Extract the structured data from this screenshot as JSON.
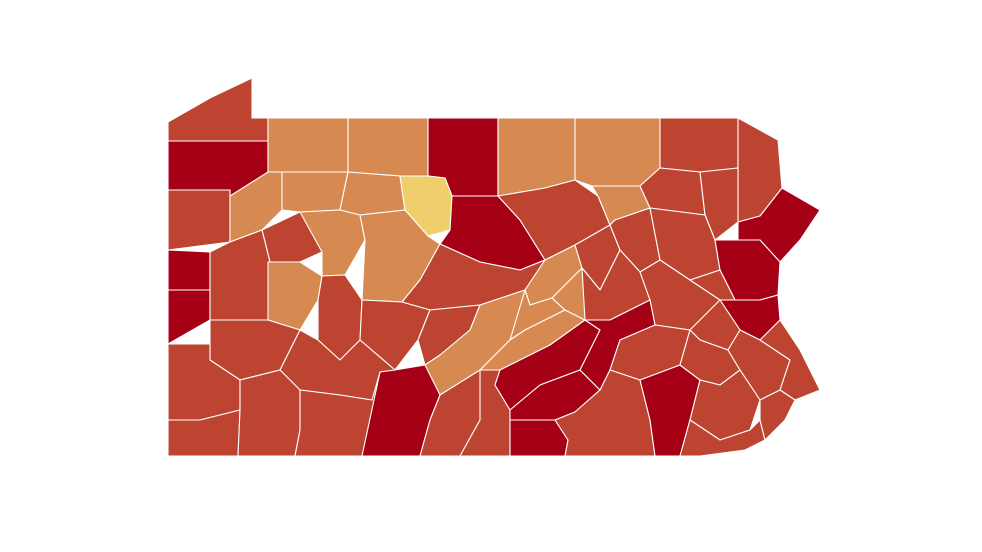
{
  "map": {
    "region": "Pennsylvania",
    "colors": {
      "very_high": "#a50016",
      "high": "#bd4431",
      "medium": "#d68a52",
      "low": "#f0ce6b",
      "background": "#ffffff",
      "border": "#ffffff"
    },
    "counties": [
      {
        "id": "erie",
        "level": "high"
      },
      {
        "id": "crawford",
        "level": "very_high"
      },
      {
        "id": "mercer",
        "level": "high"
      },
      {
        "id": "lawrence",
        "level": "very_high"
      },
      {
        "id": "beaver",
        "level": "very_high"
      },
      {
        "id": "venango",
        "level": "medium"
      },
      {
        "id": "warren",
        "level": "medium"
      },
      {
        "id": "mckean",
        "level": "medium"
      },
      {
        "id": "potter",
        "level": "very_high"
      },
      {
        "id": "tioga",
        "level": "medium"
      },
      {
        "id": "bradford",
        "level": "medium"
      },
      {
        "id": "susquehanna",
        "level": "high"
      },
      {
        "id": "wayne",
        "level": "high"
      },
      {
        "id": "forest",
        "level": "medium"
      },
      {
        "id": "elk",
        "level": "medium"
      },
      {
        "id": "cameron",
        "level": "low"
      },
      {
        "id": "clinton",
        "level": "very_high"
      },
      {
        "id": "lycoming",
        "level": "high"
      },
      {
        "id": "sullivan",
        "level": "medium"
      },
      {
        "id": "wyoming",
        "level": "high"
      },
      {
        "id": "lackawanna",
        "level": "high"
      },
      {
        "id": "pike",
        "level": "very_high"
      },
      {
        "id": "clarion",
        "level": "high"
      },
      {
        "id": "jefferson",
        "level": "medium"
      },
      {
        "id": "clearfield",
        "level": "medium"
      },
      {
        "id": "centre",
        "level": "high"
      },
      {
        "id": "union",
        "level": "medium"
      },
      {
        "id": "montour",
        "level": "high"
      },
      {
        "id": "columbia",
        "level": "high"
      },
      {
        "id": "luzerne",
        "level": "high"
      },
      {
        "id": "monroe",
        "level": "very_high"
      },
      {
        "id": "butler",
        "level": "high"
      },
      {
        "id": "armstrong",
        "level": "medium"
      },
      {
        "id": "indiana",
        "level": "high"
      },
      {
        "id": "cambria",
        "level": "high"
      },
      {
        "id": "blair",
        "level": "high"
      },
      {
        "id": "huntingdon",
        "level": "medium"
      },
      {
        "id": "mifflin",
        "level": "medium"
      },
      {
        "id": "juniata",
        "level": "medium"
      },
      {
        "id": "snyder",
        "level": "medium"
      },
      {
        "id": "northumberland",
        "level": "high"
      },
      {
        "id": "schuylkill",
        "level": "high"
      },
      {
        "id": "carbon",
        "level": "high"
      },
      {
        "id": "northampton",
        "level": "very_high"
      },
      {
        "id": "lehigh",
        "level": "high"
      },
      {
        "id": "allegheny",
        "level": "high"
      },
      {
        "id": "westmoreland",
        "level": "high"
      },
      {
        "id": "washington",
        "level": "high"
      },
      {
        "id": "greene",
        "level": "high"
      },
      {
        "id": "fayette",
        "level": "high"
      },
      {
        "id": "somerset",
        "level": "high"
      },
      {
        "id": "bedford",
        "level": "very_high"
      },
      {
        "id": "fulton",
        "level": "high"
      },
      {
        "id": "franklin",
        "level": "high"
      },
      {
        "id": "perry",
        "level": "very_high"
      },
      {
        "id": "cumberland",
        "level": "very_high"
      },
      {
        "id": "adams",
        "level": "very_high"
      },
      {
        "id": "dauphin",
        "level": "very_high"
      },
      {
        "id": "lebanon",
        "level": "high"
      },
      {
        "id": "york",
        "level": "high"
      },
      {
        "id": "lancaster",
        "level": "very_high"
      },
      {
        "id": "berks",
        "level": "high"
      },
      {
        "id": "montgomery",
        "level": "high"
      },
      {
        "id": "chester",
        "level": "high"
      },
      {
        "id": "bucks",
        "level": "high"
      },
      {
        "id": "delaware",
        "level": "high"
      },
      {
        "id": "philadelphia",
        "level": "high"
      }
    ]
  }
}
